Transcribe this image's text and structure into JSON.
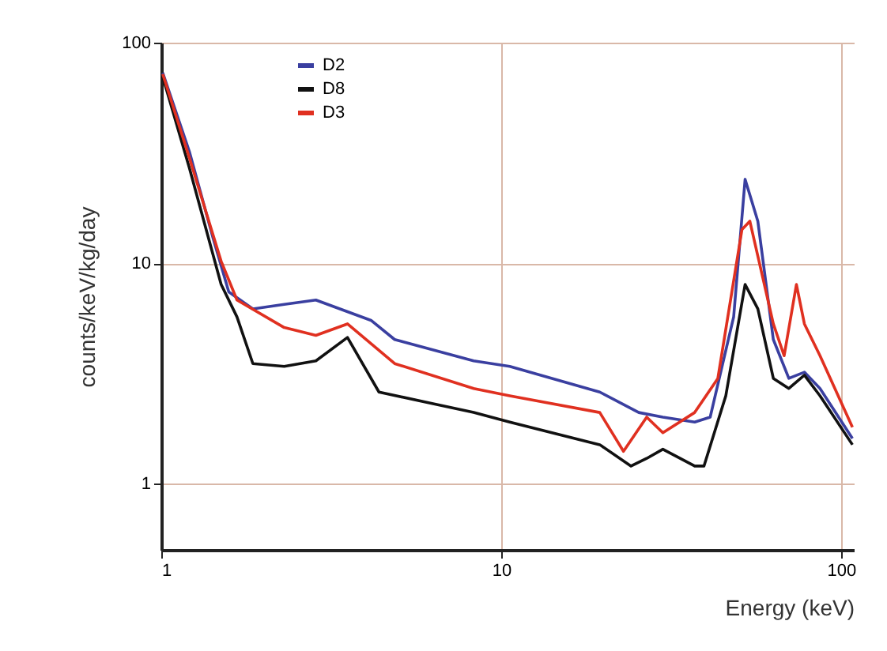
{
  "chart_data": {
    "type": "line",
    "xlabel": "Energy (keV)",
    "ylabel": "counts/keV/kg/day",
    "xlim": [
      1,
      109
    ],
    "xticks": [
      1,
      10,
      100
    ],
    "ylim": [
      0.5,
      100
    ],
    "yticks": [
      1,
      10,
      100
    ],
    "log": "xy",
    "grid": true,
    "legend": "top left",
    "series": [
      {
        "name": "D2",
        "color": "#3a3fa0",
        "x": [
          1.01,
          1.21,
          1.42,
          1.58,
          1.86,
          2.3,
          2.85,
          4.14,
          4.86,
          8.3,
          10.6,
          19.5,
          25.4,
          29.9,
          37.1,
          41.2,
          48.3,
          52.2,
          56.9,
          63.2,
          70.2,
          78.0,
          86.7,
          108
        ],
        "values": [
          73,
          32,
          13,
          7.4,
          6.2,
          6.5,
          6.8,
          5.5,
          4.5,
          3.6,
          3.4,
          2.6,
          2.1,
          2.0,
          1.9,
          2.0,
          5.7,
          24,
          15.5,
          4.5,
          3.0,
          3.2,
          2.7,
          1.6
        ]
      },
      {
        "name": "D8",
        "color": "#111111",
        "x": [
          1.01,
          1.21,
          1.5,
          1.67,
          1.86,
          2.3,
          2.85,
          3.53,
          4.37,
          8.3,
          10.6,
          19.5,
          24.1,
          26.8,
          29.9,
          37.1,
          39.5,
          45.8,
          52.2,
          56.9,
          63.2,
          70.2,
          78.0,
          86.7,
          108
        ],
        "values": [
          70,
          27,
          8,
          5.7,
          3.5,
          3.4,
          3.6,
          4.6,
          2.6,
          2.1,
          1.9,
          1.5,
          1.2,
          1.3,
          1.43,
          1.2,
          1.2,
          2.5,
          8.0,
          6.2,
          3.0,
          2.7,
          3.1,
          2.5,
          1.5
        ]
      },
      {
        "name": "D3",
        "color": "#e03020",
        "x": [
          1.01,
          1.21,
          1.5,
          1.67,
          2.3,
          2.85,
          3.53,
          4.86,
          8.3,
          10.6,
          19.5,
          22.9,
          26.8,
          29.9,
          37.1,
          43.4,
          51.1,
          53.9,
          63.2,
          68.0,
          73.9,
          78.0,
          86.7,
          108
        ],
        "values": [
          72,
          30,
          10.2,
          6.8,
          5.1,
          4.7,
          5.3,
          3.5,
          2.7,
          2.5,
          2.1,
          1.4,
          2.0,
          1.7,
          2.1,
          3.0,
          14.2,
          15.5,
          5.3,
          3.8,
          8.0,
          5.3,
          3.8,
          1.8
        ]
      }
    ]
  }
}
